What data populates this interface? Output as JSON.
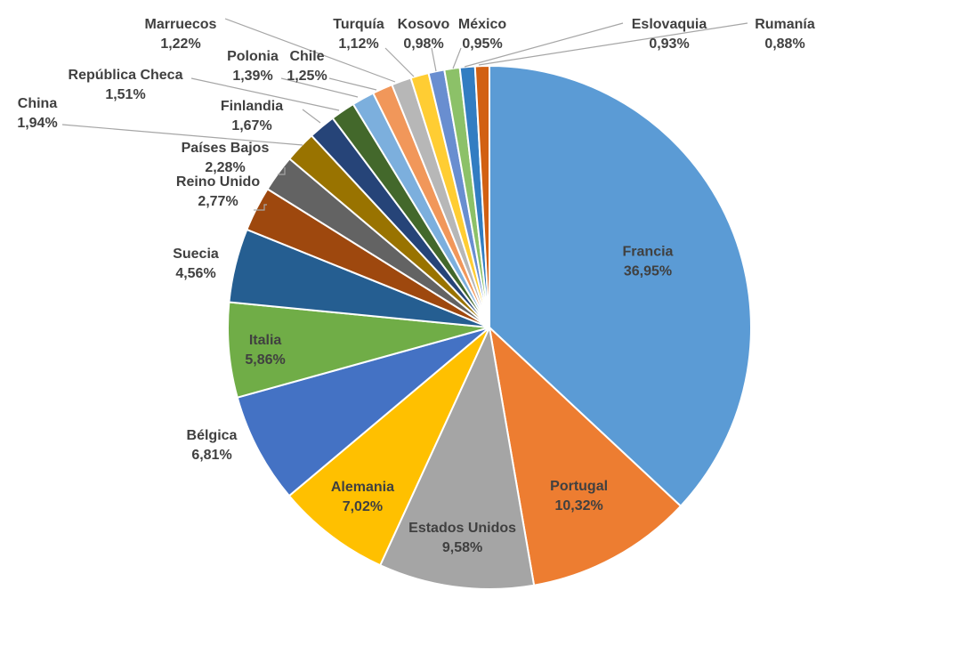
{
  "chart_data": {
    "type": "pie",
    "title": "",
    "slices": [
      {
        "name": "Francia",
        "label": "36,95%",
        "value": 36.95,
        "color": "#5b9bd5"
      },
      {
        "name": "Portugal",
        "label": "10,32%",
        "value": 10.32,
        "color": "#ed7d31"
      },
      {
        "name": "Estados Unidos",
        "label": "9,58%",
        "value": 9.58,
        "color": "#a5a5a5"
      },
      {
        "name": "Alemania",
        "label": "7,02%",
        "value": 7.02,
        "color": "#ffc000"
      },
      {
        "name": "Bélgica",
        "label": "6,81%",
        "value": 6.81,
        "color": "#4472c4"
      },
      {
        "name": "Italia",
        "label": "5,86%",
        "value": 5.86,
        "color": "#70ad47"
      },
      {
        "name": "Suecia",
        "label": "4,56%",
        "value": 4.56,
        "color": "#255e91"
      },
      {
        "name": "Reino Unido",
        "label": "2,77%",
        "value": 2.77,
        "color": "#9e480e"
      },
      {
        "name": "Países Bajos",
        "label": "2,28%",
        "value": 2.28,
        "color": "#636363"
      },
      {
        "name": "China",
        "label": "1,94%",
        "value": 1.94,
        "color": "#997300"
      },
      {
        "name": "Finlandia",
        "label": "1,67%",
        "value": 1.67,
        "color": "#264478"
      },
      {
        "name": "República Checa",
        "label": "1,51%",
        "value": 1.51,
        "color": "#43682b"
      },
      {
        "name": "Polonia",
        "label": "1,39%",
        "value": 1.39,
        "color": "#7cafdd"
      },
      {
        "name": "Chile",
        "label": "1,25%",
        "value": 1.25,
        "color": "#f1975a"
      },
      {
        "name": "Marruecos",
        "label": "1,22%",
        "value": 1.22,
        "color": "#b7b7b7"
      },
      {
        "name": "Turquía",
        "label": "1,12%",
        "value": 1.12,
        "color": "#ffcd33"
      },
      {
        "name": "Kosovo",
        "label": "0,98%",
        "value": 0.98,
        "color": "#698ed0"
      },
      {
        "name": "México",
        "label": "0,95%",
        "value": 0.95,
        "color": "#8cc168"
      },
      {
        "name": "Eslovaquia",
        "label": "0,93%",
        "value": 0.93,
        "color": "#327dc2"
      },
      {
        "name": "Rumanía",
        "label": "0,88%",
        "value": 0.88,
        "color": "#d26012"
      }
    ]
  }
}
